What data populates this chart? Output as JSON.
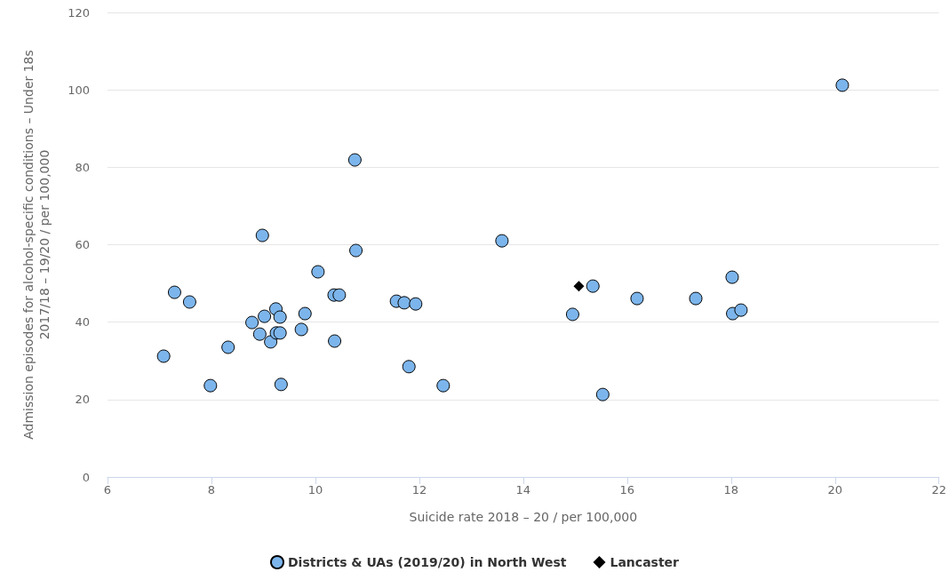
{
  "chart_data": {
    "type": "scatter",
    "xlabel": "Suicide rate 2018 – 20 / per 100,000",
    "ylabel": "Admission episodes for alcohol-specific conditions – Under 18s\n2017/18 – 19/20 / per 100,000",
    "xlim": [
      6,
      22
    ],
    "xticks": [
      6,
      8,
      10,
      12,
      14,
      16,
      18,
      20,
      22
    ],
    "ylim": [
      0,
      120
    ],
    "yticks": [
      0,
      20,
      40,
      60,
      80,
      100,
      120
    ],
    "grid": "y",
    "legend": "bottom",
    "series": [
      {
        "name": "Districts & UAs (2019/20) in North West",
        "color": "#7cb5ec",
        "marker": "circle",
        "x": [
          7.08,
          7.29,
          7.58,
          7.98,
          8.32,
          8.78,
          8.93,
          9.02,
          8.98,
          9.14,
          9.24,
          9.25,
          9.32,
          9.32,
          9.34,
          9.73,
          9.8,
          10.05,
          10.36,
          10.46,
          10.37,
          10.76,
          10.78,
          11.56,
          11.71,
          11.93,
          11.8,
          12.46,
          13.59,
          14.95,
          15.34,
          15.53,
          16.19,
          17.32,
          18.02,
          18.03,
          18.19,
          20.14
        ],
        "values": [
          31.2,
          47.7,
          45.2,
          23.6,
          33.5,
          39.9,
          36.9,
          41.5,
          62.4,
          34.9,
          43.4,
          37.2,
          41.3,
          37.2,
          23.9,
          38.1,
          42.2,
          53.0,
          47.0,
          47.0,
          35.1,
          81.9,
          58.5,
          45.4,
          45.0,
          44.7,
          28.5,
          23.6,
          61.0,
          42.0,
          49.3,
          21.3,
          46.1,
          46.1,
          51.6,
          42.2,
          43.1,
          101.2
        ]
      },
      {
        "name": "Lancaster",
        "color": "#000000",
        "marker": "diamond",
        "x": [
          15.07
        ],
        "values": [
          49.3
        ]
      }
    ]
  }
}
